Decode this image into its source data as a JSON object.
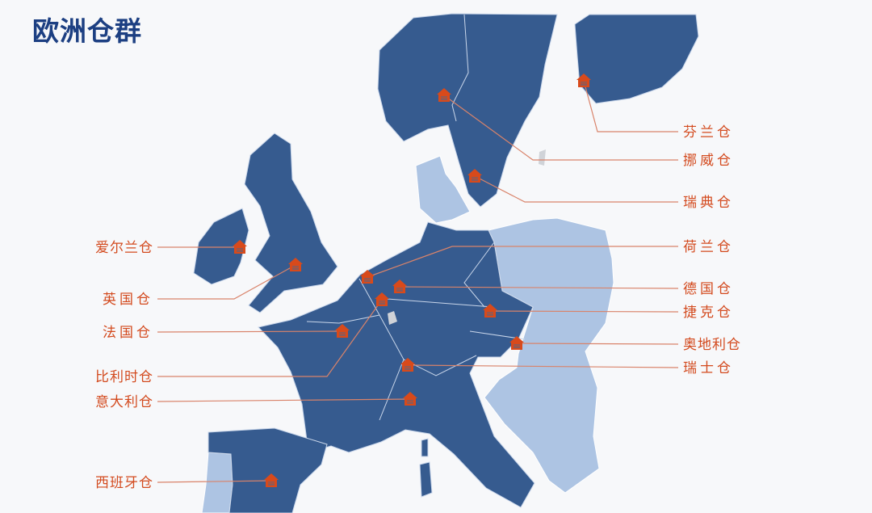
{
  "title": "欧洲仓群",
  "colors": {
    "title": "#1c3f82",
    "warehouse_country": "#365b8f",
    "other_country": "#adc4e3",
    "label": "#d34a1e",
    "leader_line": "#d9836a"
  },
  "marker_icon": "warehouse-house-icon",
  "warehouses": {
    "finland": "芬兰仓",
    "norway": "挪威仓",
    "sweden": "瑞典仓",
    "netherlands": "荷兰仓",
    "germany": "德国仓",
    "czech": "捷克仓",
    "austria": "奥地利仓",
    "switzerland": "瑞士仓",
    "ireland": "爱尔兰仓",
    "uk": "英国仓",
    "france": "法国仓",
    "belgium": "比利时仓",
    "italy": "意大利仓",
    "spain": "西班牙仓"
  }
}
